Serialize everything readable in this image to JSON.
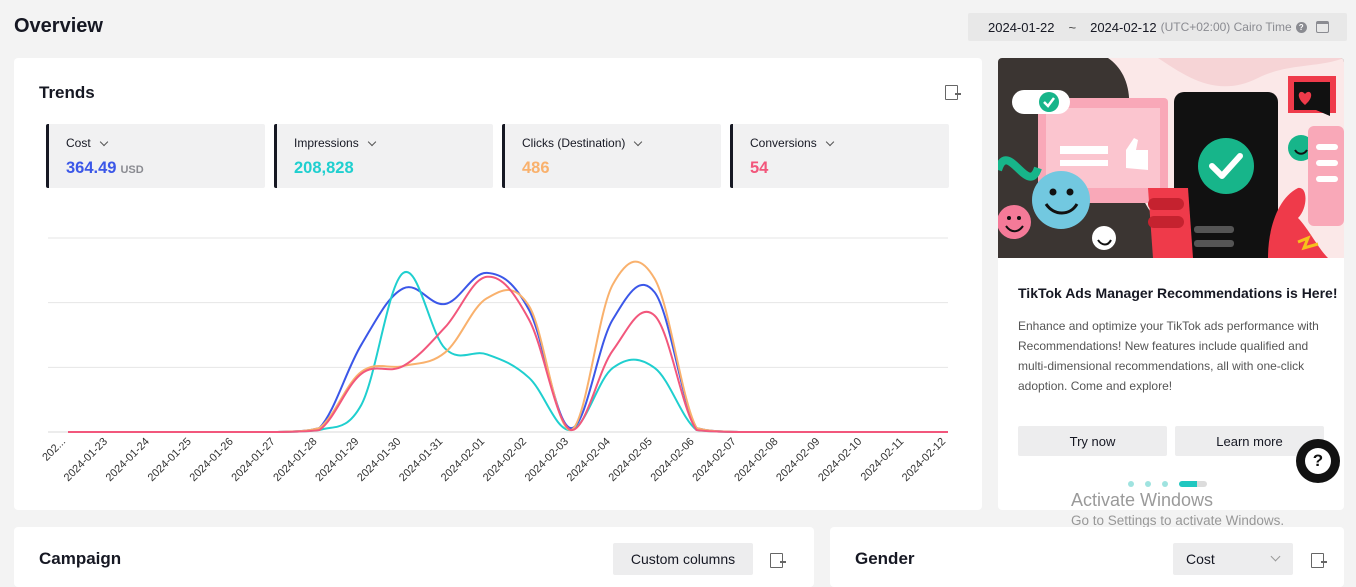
{
  "header": {
    "title": "Overview",
    "date_start": "2024-01-22",
    "date_sep": "~",
    "date_end": "2024-02-12",
    "timezone": "(UTC+02:00) Cairo Time",
    "help_glyph": "?",
    "calendar_icon": "calendar-icon"
  },
  "trends": {
    "title": "Trends",
    "export_icon": "export-icon",
    "metrics": [
      {
        "label": "Cost",
        "value": "364.49",
        "unit": "USD",
        "color": "#3b57e8"
      },
      {
        "label": "Impressions",
        "value": "208,828",
        "unit": "",
        "color": "#1fcfcf"
      },
      {
        "label": "Clicks (Destination)",
        "value": "486",
        "unit": "",
        "color": "#f9b16d"
      },
      {
        "label": "Conversions",
        "value": "54",
        "unit": "",
        "color": "#f2577c"
      }
    ]
  },
  "chart_data": {
    "type": "line",
    "x": [
      "2024-01-22",
      "2024-01-23",
      "2024-01-24",
      "2024-01-25",
      "2024-01-26",
      "2024-01-27",
      "2024-01-28",
      "2024-01-29",
      "2024-01-30",
      "2024-01-31",
      "2024-02-01",
      "2024-02-02",
      "2024-02-03",
      "2024-02-04",
      "2024-02-05",
      "2024-02-06",
      "2024-02-07",
      "2024-02-08",
      "2024-02-09",
      "2024-02-10",
      "2024-02-11",
      "2024-02-12"
    ],
    "x_tick_labels": [
      "202...",
      "2024-01-23",
      "2024-01-24",
      "2024-01-25",
      "2024-01-26",
      "2024-01-27",
      "2024-01-28",
      "2024-01-29",
      "2024-01-30",
      "2024-01-31",
      "2024-02-01",
      "2024-02-02",
      "2024-02-03",
      "2024-02-04",
      "2024-02-05",
      "2024-02-06",
      "2024-02-07",
      "2024-02-08",
      "2024-02-09",
      "2024-02-10",
      "2024-02-11",
      "2024-02-12"
    ],
    "ylim": [
      0,
      1
    ],
    "grid": true,
    "series": [
      {
        "name": "Cost",
        "color": "#3b57e8",
        "values": [
          0,
          0,
          0,
          0,
          0,
          0,
          0.02,
          0.45,
          0.74,
          0.66,
          0.82,
          0.63,
          0.02,
          0.58,
          0.72,
          0.02,
          0,
          0,
          0,
          0,
          0,
          0
        ]
      },
      {
        "name": "Impressions",
        "color": "#1fcfcf",
        "values": [
          0,
          0,
          0,
          0,
          0,
          0,
          0.01,
          0.14,
          0.82,
          0.43,
          0.4,
          0.28,
          0.01,
          0.33,
          0.33,
          0.01,
          0,
          0,
          0,
          0,
          0,
          0
        ]
      },
      {
        "name": "Clicks (Destination)",
        "color": "#f9b16d",
        "values": [
          0,
          0,
          0,
          0,
          0,
          0,
          0.02,
          0.31,
          0.34,
          0.41,
          0.69,
          0.65,
          0.01,
          0.76,
          0.79,
          0.02,
          0,
          0,
          0,
          0,
          0,
          0
        ]
      },
      {
        "name": "Conversions",
        "color": "#f2577c",
        "values": [
          0,
          0,
          0,
          0,
          0,
          0,
          0.01,
          0.3,
          0.34,
          0.54,
          0.8,
          0.58,
          0.01,
          0.42,
          0.6,
          0.01,
          0,
          0,
          0,
          0,
          0,
          0
        ]
      }
    ]
  },
  "promo": {
    "title": "TikTok Ads Manager Recommendations is Here!",
    "text": "Enhance and optimize your TikTok ads performance with Recommendations! New features include qualified and multi-dimensional recommendations, all with one-click adoption. Come and explore!",
    "try_now": "Try now",
    "learn_more": "Learn more",
    "dots": 4,
    "active_dot": 3
  },
  "help_fab": "?",
  "watermark": {
    "line1": "Activate Windows",
    "line2": "Go to Settings to activate Windows."
  },
  "campaign": {
    "title": "Campaign",
    "custom_columns": "Custom columns"
  },
  "gender": {
    "title": "Gender",
    "metric_select": "Cost"
  }
}
